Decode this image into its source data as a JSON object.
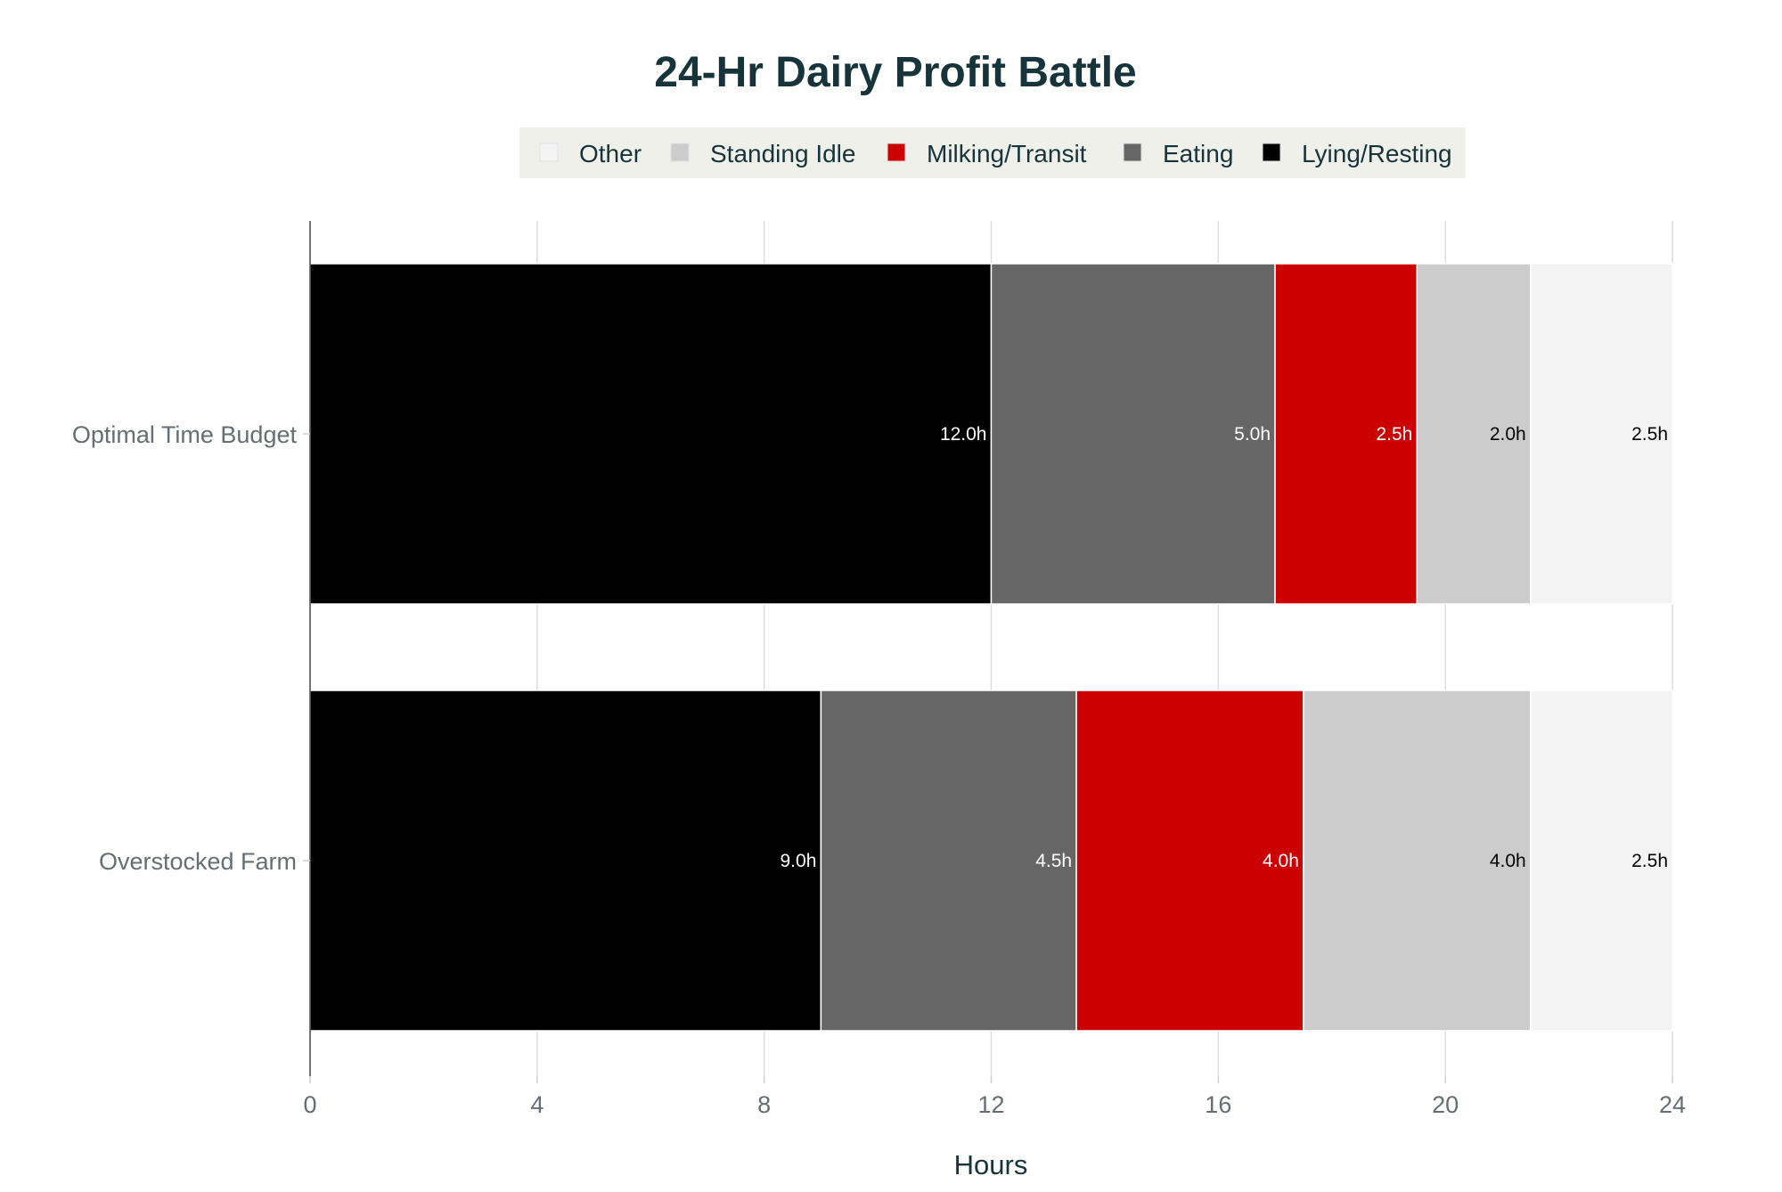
{
  "chart_data": {
    "type": "bar",
    "orientation": "horizontal",
    "stacked": true,
    "title": "24-Hr Dairy Profit Battle",
    "xlabel": "Hours",
    "ylabel": "",
    "categories": [
      "Optimal Time Budget",
      "Overstocked Farm"
    ],
    "xlim": [
      0,
      24
    ],
    "xticks": [
      0,
      4,
      8,
      12,
      16,
      20,
      24
    ],
    "grid": true,
    "legend_position": "top-center",
    "series": [
      {
        "name": "Lying/Resting",
        "color": "#000000",
        "label_color": "#ffffff",
        "values": [
          12.0,
          9.0
        ],
        "labels": [
          "12.0h",
          "9.0h"
        ]
      },
      {
        "name": "Eating",
        "color": "#666666",
        "label_color": "#ffffff",
        "values": [
          5.0,
          4.5
        ],
        "labels": [
          "5.0h",
          "4.5h"
        ]
      },
      {
        "name": "Milking/Transit",
        "color": "#cc0000",
        "label_color": "#ffffff",
        "values": [
          2.5,
          4.0
        ],
        "labels": [
          "2.5h",
          "4.0h"
        ]
      },
      {
        "name": "Standing Idle",
        "color": "#cccccc",
        "label_color": "#000000",
        "values": [
          2.0,
          4.0
        ],
        "labels": [
          "2.0h",
          "4.0h"
        ]
      },
      {
        "name": "Other",
        "color": "#f3f3f3",
        "label_color": "#000000",
        "values": [
          2.5,
          2.5
        ],
        "labels": [
          "2.5h",
          "2.5h"
        ]
      }
    ],
    "legend_order": [
      "Other",
      "Standing Idle",
      "Milking/Transit",
      "Eating",
      "Lying/Resting"
    ]
  }
}
